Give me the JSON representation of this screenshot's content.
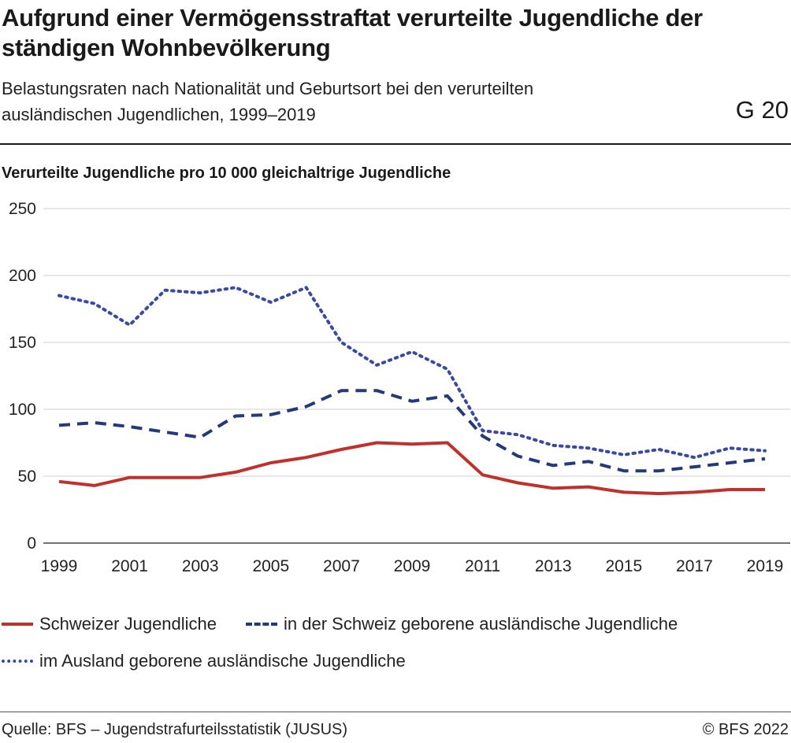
{
  "header": {
    "title": "Aufgrund einer Vermögensstraftat verurteilte Jugendliche der ständigen Wohnbevölkerung",
    "subtitle": "Belastungsraten nach Nationalität und Geburtsort bei den verurteilten ausländischen Jugendlichen, 1999–2019",
    "code": "G 20"
  },
  "footer": {
    "source": "Quelle: BFS – Jugendstrafurteilsstatistik (JUSUS)",
    "copyright": "© BFS 2022"
  },
  "chart_data": {
    "type": "line",
    "ylabel": "Verurteilte Jugendliche pro 10 000 gleichaltrige Jugendliche",
    "xlabel": "",
    "x": [
      1999,
      2000,
      2001,
      2002,
      2003,
      2004,
      2005,
      2006,
      2007,
      2008,
      2009,
      2010,
      2011,
      2012,
      2013,
      2014,
      2015,
      2016,
      2017,
      2018,
      2019
    ],
    "xticks": [
      "1999",
      "2001",
      "2003",
      "2005",
      "2007",
      "2009",
      "2011",
      "2013",
      "2015",
      "2017",
      "2019"
    ],
    "yticks": [
      "0",
      "50",
      "100",
      "150",
      "200",
      "250"
    ],
    "ylim": [
      0,
      250
    ],
    "grid": true,
    "legend_position": "bottom",
    "series": [
      {
        "name": "Schweizer Jugendliche",
        "style": "solid",
        "color": "#c0302d",
        "values": [
          46,
          43,
          49,
          49,
          49,
          53,
          60,
          64,
          70,
          75,
          74,
          75,
          51,
          45,
          41,
          42,
          38,
          37,
          38,
          40,
          40
        ]
      },
      {
        "name": "in der Schweiz geborene ausländische Jugendliche",
        "style": "dashed",
        "color": "#243a78",
        "values": [
          88,
          90,
          87,
          83,
          79,
          95,
          96,
          102,
          114,
          114,
          106,
          110,
          80,
          65,
          58,
          61,
          54,
          54,
          57,
          60,
          63
        ]
      },
      {
        "name": "im Ausland geborene ausländische Jugendliche",
        "style": "dotted",
        "color": "#3a4aa0",
        "values": [
          185,
          179,
          163,
          189,
          187,
          191,
          180,
          191,
          150,
          133,
          143,
          130,
          84,
          81,
          73,
          71,
          66,
          70,
          64,
          71,
          69
        ]
      }
    ]
  }
}
